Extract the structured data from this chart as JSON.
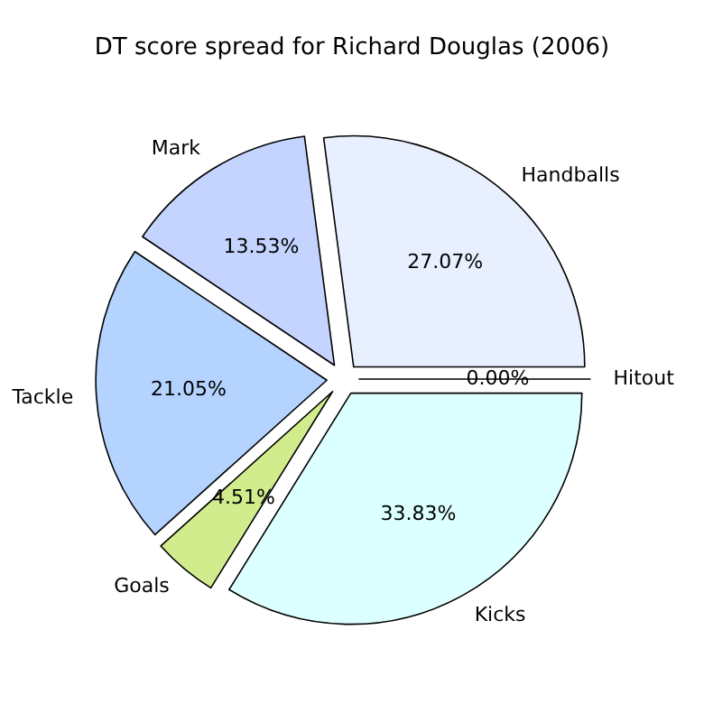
{
  "chart_data": {
    "type": "pie",
    "title": "DT score spread for Richard Douglas (2006)",
    "categories": [
      "Handballs",
      "Mark",
      "Tackle",
      "Goals",
      "Kicks",
      "Hitout"
    ],
    "values": [
      27.07,
      13.53,
      21.05,
      4.51,
      33.83,
      0.0
    ],
    "colors": [
      "#e8f0ff",
      "#c4d4ff",
      "#b4d4ff",
      "#d0ec8c",
      "#dcffff",
      "#ffffff"
    ],
    "value_labels": [
      "27.07%",
      "13.53%",
      "21.05%",
      "4.51%",
      "33.83%",
      "0.00%"
    ]
  }
}
